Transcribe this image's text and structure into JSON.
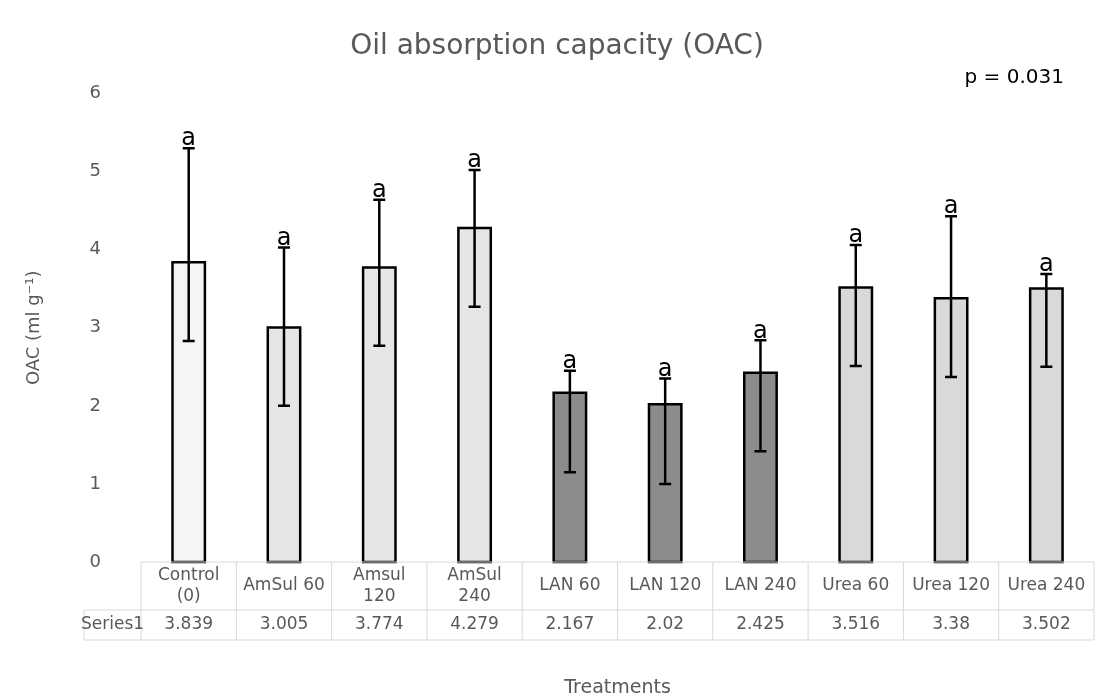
{
  "chart_data": {
    "type": "bar",
    "title": "Oil absorption capacity (OAC)",
    "xlabel": "Treatments",
    "ylabel": "OAC (ml g⁻¹)",
    "categories": [
      "Control (0)",
      "AmSul 60",
      "Amsul 120",
      "AmSul 240",
      "LAN 60",
      "LAN 120",
      "LAN 240",
      "Urea 60",
      "Urea 120",
      "Urea 240"
    ],
    "series": [
      {
        "name": "Series1",
        "colors": [
          "#f5f5f5",
          "#e6e6e6",
          "#e6e6e6",
          "#e6e6e6",
          "#8c8c8c",
          "#8c8c8c",
          "#8c8c8c",
          "#d9d9d9",
          "#d9d9d9",
          "#d9d9d9"
        ],
        "values": [
          3.839,
          3.005,
          3.774,
          4.279,
          2.167,
          2.02,
          2.425,
          3.516,
          3.38,
          3.502
        ],
        "errors": [
          [
            2.83,
            5.3
          ],
          [
            2.0,
            4.03
          ],
          [
            2.77,
            4.64
          ],
          [
            3.27,
            5.02
          ],
          [
            1.15,
            2.45
          ],
          [
            1.0,
            2.35
          ],
          [
            1.42,
            2.84
          ],
          [
            2.51,
            4.06
          ],
          [
            2.37,
            4.43
          ],
          [
            2.5,
            3.69
          ]
        ]
      }
    ],
    "ylim": [
      0,
      6
    ],
    "yticks": [
      0,
      1,
      2,
      3,
      4,
      5,
      6
    ],
    "data_labels": true,
    "annotations": [
      {
        "text": "a",
        "x": "Control (0)",
        "y": 5.3
      },
      {
        "text": "a",
        "x": "AmSul 60",
        "y": 4.03
      },
      {
        "text": "a",
        "x": "Amsul 120",
        "y": 4.64
      },
      {
        "text": "a",
        "x": "AmSul 240",
        "y": 5.02
      },
      {
        "text": "a",
        "x": "LAN 60",
        "y": 2.45
      },
      {
        "text": "a",
        "x": "LAN 120",
        "y": 2.35
      },
      {
        "text": "a",
        "x": "LAN 240",
        "y": 2.84
      },
      {
        "text": "a",
        "x": "Urea 60",
        "y": 4.06
      },
      {
        "text": "a",
        "x": "Urea 120",
        "y": 4.43
      },
      {
        "text": "a",
        "x": "Urea 240",
        "y": 3.69
      },
      "p = 0.031"
    ]
  }
}
